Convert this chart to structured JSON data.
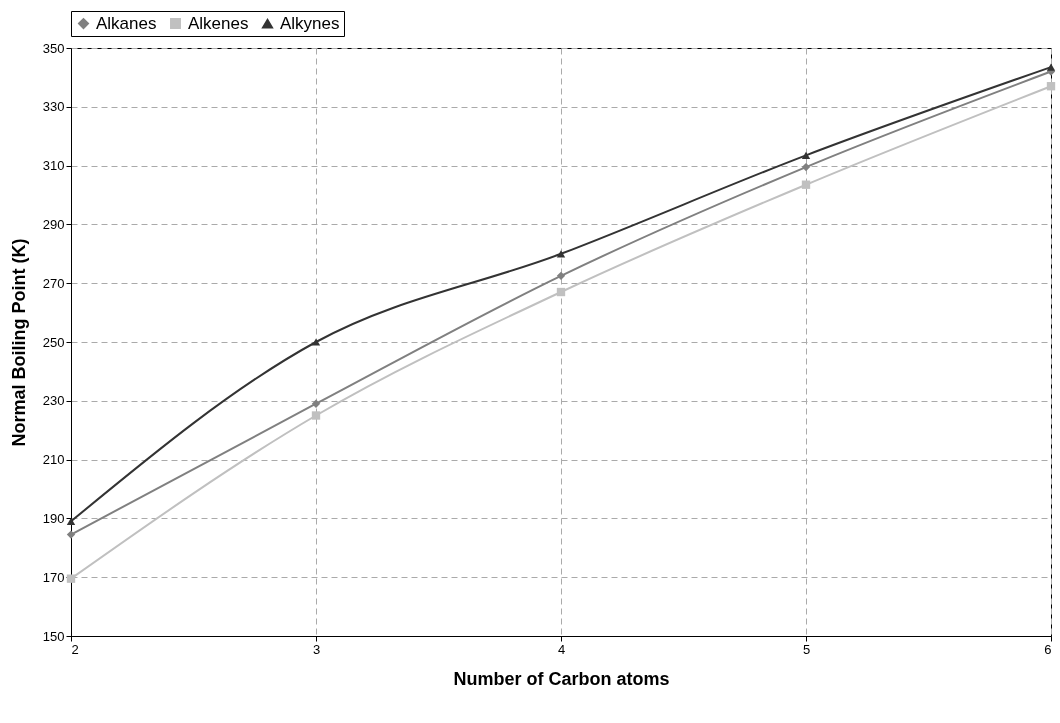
{
  "chart_data": {
    "type": "line",
    "xlabel": "Number of Carbon atoms",
    "ylabel": "Normal Boiling Point (K)",
    "x": [
      2,
      3,
      4,
      5,
      6
    ],
    "series": [
      {
        "name": "Alkanes",
        "color": "#808080",
        "marker": "diamond",
        "values": [
          184.5,
          229,
          272.5,
          309.5,
          342
        ]
      },
      {
        "name": "Alkenes",
        "color": "#c0c0c0",
        "marker": "square",
        "values": [
          169.5,
          225,
          267,
          303.5,
          337
        ]
      },
      {
        "name": "Alkynes",
        "color": "#333333",
        "marker": "triangle",
        "values": [
          189,
          250,
          280,
          313.5,
          343.5
        ]
      }
    ],
    "xlim": [
      2,
      6
    ],
    "xticks": [
      2,
      3,
      4,
      5,
      6
    ],
    "ylim": [
      150,
      350
    ],
    "yticks": [
      150,
      170,
      190,
      210,
      230,
      250,
      270,
      290,
      310,
      330,
      350
    ],
    "grid": true,
    "legend": "top",
    "line_style": "solid"
  }
}
